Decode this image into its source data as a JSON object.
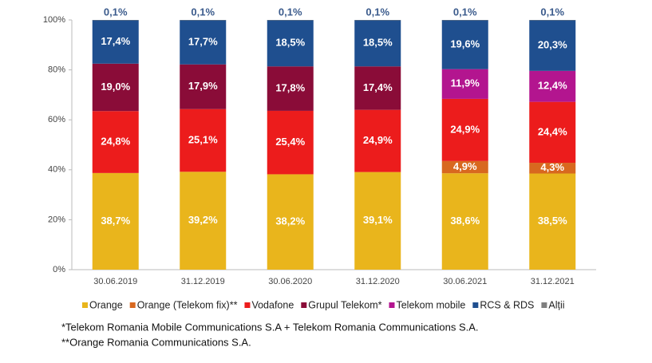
{
  "chart_data": {
    "type": "stacked_bar",
    "categories": [
      "30.06.2019",
      "31.12.2019",
      "30.06.2020",
      "31.12.2020",
      "30.06.2021",
      "31.12.2021"
    ],
    "series": [
      {
        "name": "Orange",
        "color": "#e9b51c",
        "values": [
          38.7,
          39.2,
          38.2,
          39.1,
          38.6,
          38.5
        ],
        "value_labels": [
          "38,7%",
          "39,2%",
          "38,2%",
          "39,1%",
          "38,6%",
          "38,5%"
        ]
      },
      {
        "name": "Orange (Telekom fix)**",
        "color": "#d8681f",
        "values": [
          null,
          null,
          null,
          null,
          4.9,
          4.3
        ],
        "value_labels": [
          null,
          null,
          null,
          null,
          "4,9%",
          "4,3%"
        ]
      },
      {
        "name": "Vodafone",
        "color": "#ec1c1c",
        "values": [
          24.8,
          25.1,
          25.4,
          24.9,
          24.9,
          24.4
        ],
        "value_labels": [
          "24,8%",
          "25,1%",
          "25,4%",
          "24,9%",
          "24,9%",
          "24,4%"
        ]
      },
      {
        "name": "Grupul Telekom*",
        "color": "#8a0c38",
        "values": [
          19.0,
          17.9,
          17.8,
          17.4,
          null,
          null
        ],
        "value_labels": [
          "19,0%",
          "17,9%",
          "17,8%",
          "17,4%",
          null,
          null
        ]
      },
      {
        "name": "Telekom mobile",
        "color": "#b3158f",
        "values": [
          null,
          null,
          null,
          null,
          11.9,
          12.4
        ],
        "value_labels": [
          null,
          null,
          null,
          null,
          "11,9%",
          "12,4%"
        ]
      },
      {
        "name": "RCS & RDS",
        "color": "#1f4f8f",
        "values": [
          17.4,
          17.7,
          18.5,
          18.5,
          19.6,
          20.3
        ],
        "value_labels": [
          "17,4%",
          "17,7%",
          "18,5%",
          "18,5%",
          "19,6%",
          "20,3%"
        ]
      },
      {
        "name": "Alții",
        "color": "#7f7f7f",
        "values": [
          0.1,
          0.1,
          0.1,
          0.1,
          0.1,
          0.1
        ],
        "value_labels": [
          "0,1%",
          "0,1%",
          "0,1%",
          "0,1%",
          "0,1%",
          "0,1%"
        ]
      }
    ],
    "ylim": [
      0,
      100
    ],
    "yticks": [
      {
        "value": 0,
        "label": "0%"
      },
      {
        "value": 20,
        "label": "20%"
      },
      {
        "value": 40,
        "label": "40%"
      },
      {
        "value": 60,
        "label": "60%"
      },
      {
        "value": 80,
        "label": "80%"
      },
      {
        "value": 100,
        "label": "100%"
      }
    ],
    "annotations": [
      "*Telekom Romania Mobile Communications S.A + Telekom Romania Communications S.A.",
      "**Orange Romania Communications S.A."
    ]
  }
}
